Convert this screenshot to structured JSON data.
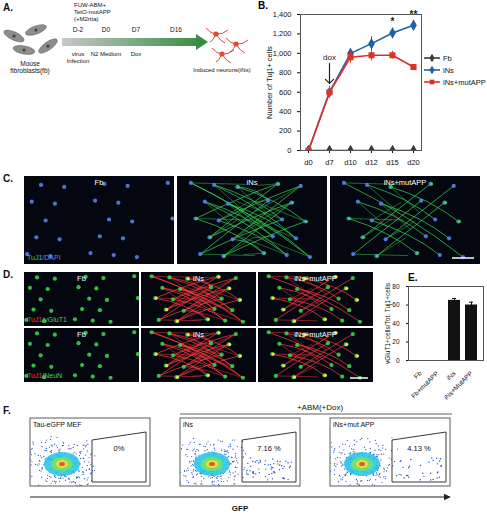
{
  "chart_data": [
    {
      "type": "line",
      "title": "B.",
      "y_label": "Number of Tuj1+ cells",
      "categories": [
        "d0",
        "d7",
        "d10",
        "d12",
        "d15",
        "d20"
      ],
      "series": [
        {
          "name": "Fb",
          "color": "#3a3a3a",
          "marker": "diamond",
          "values": [
            0,
            0,
            0,
            0,
            0,
            0
          ],
          "errors": [
            0,
            0,
            0,
            0,
            0,
            0
          ]
        },
        {
          "name": "iNs",
          "color": "#1f5fa6",
          "marker": "diamond",
          "values": [
            0,
            600,
            1000,
            1100,
            1210,
            1290
          ],
          "errors": [
            0,
            60,
            20,
            70,
            50,
            50
          ]
        },
        {
          "name": "iNs+mutAPP",
          "color": "#e0302a",
          "marker": "square",
          "values": [
            0,
            600,
            960,
            980,
            980,
            860
          ],
          "errors": [
            0,
            60,
            60,
            60,
            40,
            20
          ]
        }
      ],
      "ylim": [
        0,
        1400
      ],
      "yticks": [
        0,
        200,
        400,
        600,
        800,
        1000,
        1200,
        1400
      ],
      "legend": "right",
      "annotations": [
        {
          "text": "dox",
          "x": "d7",
          "marker": "arrow"
        },
        {
          "text": "*",
          "x": "d15"
        },
        {
          "text": "**",
          "x": "d20"
        }
      ]
    },
    {
      "type": "bar",
      "title": "E.",
      "y_label": "vGluT1+cells/Tot. Tuj1+cells",
      "categories": [
        "Fb",
        "Fb+mutAPP",
        "iNs",
        "iNs+MutAPP"
      ],
      "values": [
        0,
        0,
        65,
        60
      ],
      "errors": [
        0,
        0,
        2,
        3
      ],
      "color": "#111111",
      "ylim": [
        0,
        80
      ],
      "yticks": [
        0,
        20,
        40,
        60,
        80
      ]
    }
  ],
  "figure": {
    "A": {
      "label": "A.",
      "vector_lines": [
        "FUW-ABM+",
        "TetO-mutAPP",
        "(+M2rtta)"
      ],
      "start": [
        "Mouse",
        "fibroblasts(fb)"
      ],
      "end": "Induced neurons(iNs)",
      "timeline": [
        {
          "day": "D-2",
          "below": [
            "virus",
            "Infection"
          ]
        },
        {
          "day": "D0",
          "below": [
            "N2 Medium"
          ]
        },
        {
          "day": "D7",
          "below": [
            "Dox"
          ]
        },
        {
          "day": "D16"
        }
      ]
    },
    "C": {
      "label": "C.",
      "columns": [
        "Fb",
        "iNs",
        "iNs+mutAPP"
      ],
      "stain": [
        {
          "text": "TuJ1",
          "color": "#39d353"
        },
        {
          "text": "/DAPI",
          "color": "#5a86ff"
        }
      ]
    },
    "D": {
      "label": "D.",
      "columns": [
        "Fb",
        "iNs",
        "iNs+mutAPP"
      ],
      "rows": [
        {
          "stain": [
            {
              "text": "TuJ1",
              "color": "#ff3b3b"
            },
            {
              "text": "/vGluT1",
              "color": "#3cdc50"
            }
          ]
        },
        {
          "stain": [
            {
              "text": "TuJ1",
              "color": "#ff3b3b"
            },
            {
              "text": "/NeuN",
              "color": "#3cdc50"
            }
          ]
        }
      ]
    },
    "F": {
      "label": "F.",
      "group": "+ABM(+Dox)",
      "x_label": "GFP",
      "plots": [
        {
          "title": "Tau-eGFP MEF",
          "gate": {
            "value": 0,
            "label": "0%"
          }
        },
        {
          "title": "iNs",
          "gate": {
            "value": 7.16,
            "label": "7.16 %"
          }
        },
        {
          "title": "iNs+mut APP",
          "gate": {
            "value": 4.13,
            "label": "4.13 %"
          }
        }
      ]
    }
  }
}
